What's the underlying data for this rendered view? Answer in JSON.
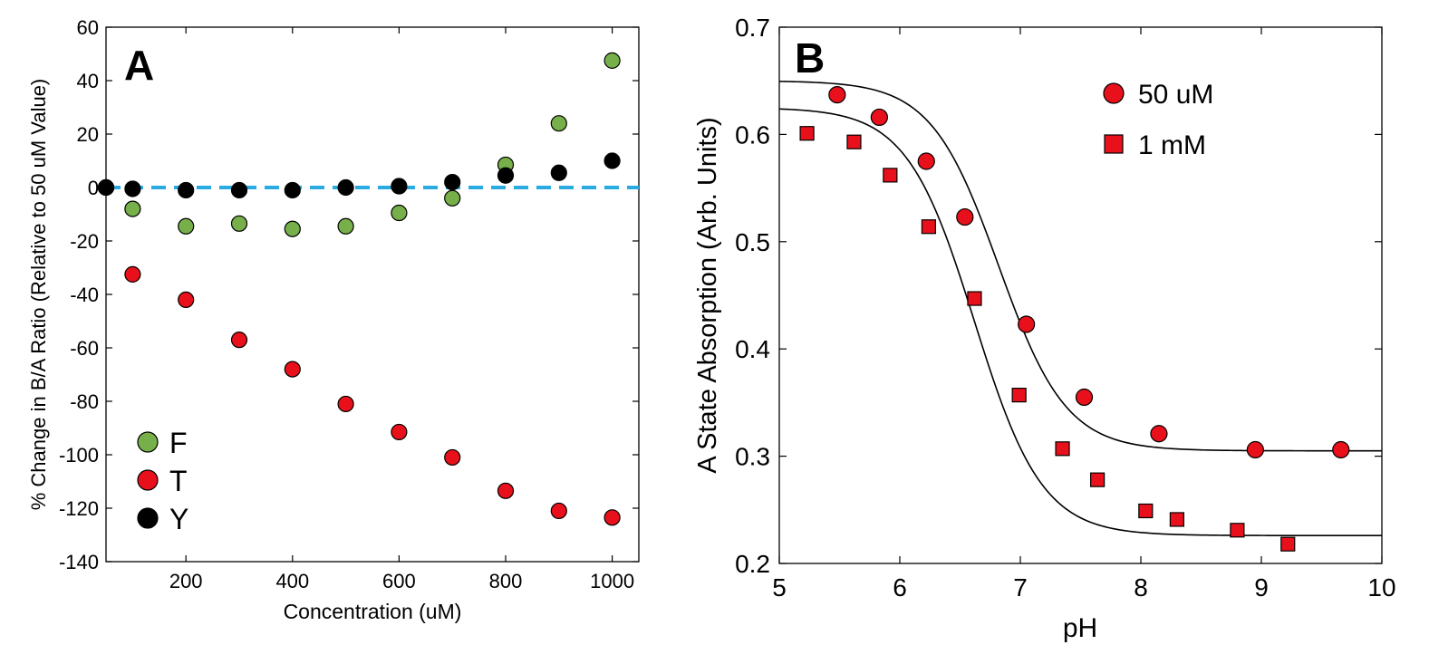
{
  "chart_data": [
    {
      "panel": "A",
      "type": "scatter",
      "xlabel": "Concentration (uM)",
      "ylabel": "% Change in B/A Ratio (Relative to 50 uM Value)",
      "xlim": [
        50,
        1050
      ],
      "ylim": [
        -140,
        60
      ],
      "xticks": [
        200,
        400,
        600,
        800,
        1000
      ],
      "yticks": [
        60,
        40,
        20,
        0,
        -20,
        -40,
        -60,
        -80,
        -100,
        -120,
        -140
      ],
      "legend_position": "bottom-left",
      "reference_line": {
        "y": 0,
        "style": "dashed",
        "color": "#29abe2"
      },
      "series": [
        {
          "name": "F",
          "color": "#77b04a",
          "marker": "circle",
          "x": [
            50,
            100,
            200,
            300,
            400,
            500,
            600,
            700,
            800,
            900,
            1000
          ],
          "y": [
            0,
            -8,
            -14.5,
            -13.5,
            -15.5,
            -14.5,
            -9.5,
            -4,
            8.5,
            24,
            47.5
          ]
        },
        {
          "name": "T",
          "color": "#e8101a",
          "marker": "circle",
          "x": [
            50,
            100,
            200,
            300,
            400,
            500,
            600,
            700,
            800,
            900,
            1000
          ],
          "y": [
            0,
            -32.5,
            -42,
            -57,
            -68,
            -81,
            -91.5,
            -101,
            -113.5,
            -121,
            -123.5
          ]
        },
        {
          "name": "Y",
          "color": "#000000",
          "marker": "circle",
          "x": [
            50,
            100,
            200,
            300,
            400,
            500,
            600,
            700,
            800,
            900,
            1000
          ],
          "y": [
            0,
            -0.5,
            -1,
            -1,
            -1,
            0,
            0.5,
            2,
            4.5,
            5.5,
            10
          ]
        }
      ]
    },
    {
      "panel": "B",
      "type": "scatter",
      "xlabel": "pH",
      "ylabel": "A State Absorption (Arb. Units)",
      "xlim": [
        5,
        10
      ],
      "ylim": [
        0.2,
        0.7
      ],
      "xticks": [
        5,
        6,
        7,
        8,
        9,
        10
      ],
      "yticks": [
        0.7,
        0.6,
        0.5,
        0.4,
        0.3,
        0.2
      ],
      "ytick_labels": [
        "0.7",
        "0.6",
        "0.5",
        "0.4",
        "0.3",
        "0.2"
      ],
      "legend_position": "top-right",
      "fit_curves": "sigmoidal fit lines (black)",
      "series": [
        {
          "name": "50 uM",
          "color": "#e8101a",
          "marker": "circle",
          "x": [
            5.48,
            5.83,
            6.22,
            6.54,
            7.05,
            7.53,
            8.15,
            8.95,
            9.66
          ],
          "y": [
            0.637,
            0.616,
            0.575,
            0.523,
            0.423,
            0.355,
            0.321,
            0.306,
            0.306
          ],
          "fit": {
            "bottom": 0.305,
            "top": 0.65,
            "pKa": 6.82,
            "slope": 1.55
          }
        },
        {
          "name": "1 mM",
          "color": "#e8101a",
          "marker": "square",
          "x": [
            5.23,
            5.62,
            5.92,
            6.24,
            6.62,
            6.99,
            7.35,
            7.64,
            8.04,
            8.3,
            8.8,
            9.22
          ],
          "y": [
            0.601,
            0.593,
            0.562,
            0.514,
            0.447,
            0.357,
            0.307,
            0.278,
            0.249,
            0.241,
            0.231,
            0.218
          ],
          "fit": {
            "bottom": 0.226,
            "top": 0.625,
            "pKa": 6.62,
            "slope": 1.55
          }
        }
      ]
    }
  ],
  "panels": {
    "A": {
      "letter": "A",
      "legend": [
        "F",
        "T",
        "Y"
      ]
    },
    "B": {
      "letter": "B",
      "legend": [
        "50 uM",
        "1 mM"
      ]
    }
  }
}
